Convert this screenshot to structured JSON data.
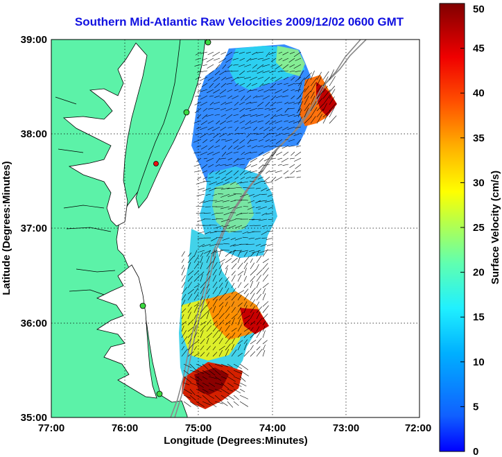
{
  "map": {
    "title": "Southern Mid-Atlantic Raw Velocities 2009/12/02 0600 GMT",
    "xlabel": "Longitude (Degrees:Minutes)",
    "ylabel": "Latitude (Degrees:Minutes)",
    "lon_range": [
      -77,
      -72
    ],
    "lat_range": [
      35,
      39
    ],
    "lon_ticks": [
      {
        "value": -77,
        "label": "77:00"
      },
      {
        "value": -76,
        "label": "76:00"
      },
      {
        "value": -75,
        "label": "75:00"
      },
      {
        "value": -74,
        "label": "74:00"
      },
      {
        "value": -73,
        "label": "73:00"
      },
      {
        "value": -72,
        "label": "72:00"
      }
    ],
    "lat_ticks": [
      {
        "value": 39,
        "label": "39:00"
      },
      {
        "value": 38,
        "label": "38:00"
      },
      {
        "value": 37,
        "label": "37:00"
      },
      {
        "value": 36,
        "label": "36:00"
      },
      {
        "value": 35,
        "label": "35:00"
      }
    ],
    "grid": "dotted",
    "colors": {
      "land": "#5cf2a8",
      "title": "#1010e0",
      "frame": "#000000",
      "bathymetry": "#888888"
    }
  },
  "colorbar": {
    "label": "Surface Velocity (cm/s)",
    "range": [
      0,
      50
    ],
    "ticks": [
      "0",
      "5",
      "10",
      "15",
      "20",
      "25",
      "30",
      "35",
      "40",
      "45",
      "50"
    ],
    "colormap": "jet"
  },
  "chart_data": {
    "type": "heatmap",
    "title": "Southern Mid-Atlantic Raw Velocities 2009/12/02 0600 GMT",
    "xlabel": "Longitude (Degrees:Minutes)",
    "ylabel": "Latitude (Degrees:Minutes)",
    "units": "cm/s",
    "value_range": [
      0,
      50
    ],
    "regions": [
      {
        "lon": [
          -75.1,
          -73.8
        ],
        "lat": [
          37.6,
          38.7
        ],
        "velocity": 6
      },
      {
        "lon": [
          -73.7,
          -73.3
        ],
        "lat": [
          38.0,
          38.5
        ],
        "velocity": 40
      },
      {
        "lon": [
          -74.9,
          -74.3
        ],
        "lat": [
          36.7,
          37.3
        ],
        "velocity": 14
      },
      {
        "lon": [
          -75.2,
          -74.6
        ],
        "lat": [
          35.7,
          36.4
        ],
        "velocity": 24
      },
      {
        "lon": [
          -74.7,
          -74.2
        ],
        "lat": [
          35.8,
          36.3
        ],
        "velocity": 44
      },
      {
        "lon": [
          -75.2,
          -74.6
        ],
        "lat": [
          35.1,
          35.6
        ],
        "velocity": 48
      }
    ]
  }
}
